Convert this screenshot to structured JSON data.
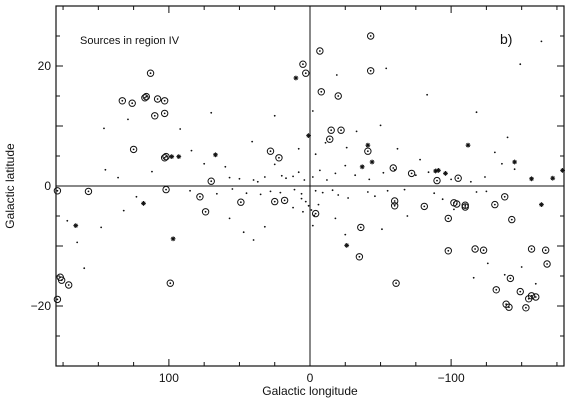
{
  "chart_data": {
    "type": "scatter",
    "title": "",
    "annotation": "Sources in region IV",
    "panel_label": "b)",
    "xlabel": "Galactic longitude",
    "ylabel": "Galactic latitude",
    "xlim": [
      180,
      -180
    ],
    "ylim": [
      -30,
      30
    ],
    "xticks": [
      100,
      0,
      -100
    ],
    "xtick_labels": [
      "100",
      "0",
      "−100"
    ],
    "yticks": [
      20,
      0,
      -20
    ],
    "ytick_labels": [
      "20",
      "0",
      "−20"
    ],
    "grid": false,
    "zero_lines": true,
    "colors": {
      "ink": "#111111",
      "background": "#ffffff"
    },
    "series": [
      {
        "marker": "circled-dot",
        "points": [
          [
            3,
            18.8
          ],
          [
            5,
            20.3
          ],
          [
            -7,
            22.5
          ],
          [
            -43,
            25
          ],
          [
            -43,
            19.2
          ],
          [
            -8,
            15.7
          ],
          [
            -20,
            15
          ],
          [
            -15,
            9.3
          ],
          [
            -22,
            9.3
          ],
          [
            -14,
            7.8
          ],
          [
            -41,
            5.8
          ],
          [
            28,
            5.8
          ],
          [
            22,
            4.7
          ],
          [
            -59,
            3
          ],
          [
            -72,
            2.1
          ],
          [
            -90,
            0.9
          ],
          [
            -105,
            1.3
          ],
          [
            113,
            18.8
          ],
          [
            116,
            14.9
          ],
          [
            117,
            14.7
          ],
          [
            108,
            14.5
          ],
          [
            103,
            14.2
          ],
          [
            126,
            13.8
          ],
          [
            133,
            14.2
          ],
          [
            110,
            11.7
          ],
          [
            103,
            12.1
          ],
          [
            125,
            6.1
          ],
          [
            103,
            4.7
          ],
          [
            102,
            4.9
          ],
          [
            70,
            0.8
          ],
          [
            78,
            -1.8
          ],
          [
            74,
            -4.3
          ],
          [
            99,
            -16.2
          ],
          [
            176,
            -15.7
          ],
          [
            177,
            -15.2
          ],
          [
            171,
            -16.5
          ],
          [
            179,
            -0.8
          ],
          [
            157,
            -0.9
          ],
          [
            102,
            -0.6
          ],
          [
            49,
            -2.7
          ],
          [
            25,
            -2.6
          ],
          [
            18,
            -2.4
          ],
          [
            -4,
            -4.6
          ],
          [
            -36,
            -6.9
          ],
          [
            -35,
            -11.8
          ],
          [
            -60,
            -3.3
          ],
          [
            -60,
            -2.5
          ],
          [
            -81,
            -3.4
          ],
          [
            -98,
            -5.4
          ],
          [
            -104,
            -3
          ],
          [
            -102,
            -2.8
          ],
          [
            -110,
            -3.5
          ],
          [
            -110,
            -3.2
          ],
          [
            -98,
            -10.8
          ],
          [
            -123,
            -10.7
          ],
          [
            -138,
            -1.8
          ],
          [
            -131,
            -3.1
          ],
          [
            -143,
            -5.6
          ],
          [
            -157,
            -10.5
          ],
          [
            -167,
            -10.7
          ],
          [
            -168,
            -13
          ],
          [
            -117,
            -10.5
          ],
          [
            -132,
            -17.3
          ],
          [
            -142,
            -15.4
          ],
          [
            -139,
            -19.7
          ],
          [
            -141,
            -20.2
          ],
          [
            -155,
            -18.8
          ],
          [
            -157,
            -18.3
          ],
          [
            -153,
            -20.3
          ],
          [
            -149,
            -17.6
          ],
          [
            -160,
            -18.5
          ],
          [
            179,
            -18.9
          ],
          [
            -61,
            -16.2
          ]
        ]
      },
      {
        "marker": "star",
        "points": [
          [
            10,
            18
          ],
          [
            1,
            8.4
          ],
          [
            67,
            5.2
          ],
          [
            93,
            4.9
          ],
          [
            98,
            4.9
          ],
          [
            -44,
            4
          ],
          [
            -89,
            2.5
          ],
          [
            -91,
            2.6
          ],
          [
            -112,
            6.8
          ],
          [
            -179,
            2.6
          ],
          [
            -157,
            1.2
          ],
          [
            -164,
            -3.1
          ],
          [
            -26,
            -9.9
          ],
          [
            -41,
            6.8
          ],
          [
            -37,
            3.2
          ],
          [
            -96,
            2.1
          ],
          [
            118,
            -2.9
          ],
          [
            97,
            -8.8
          ],
          [
            166,
            -6.6
          ],
          [
            -145,
            4
          ],
          [
            -172,
            1.3
          ]
        ]
      },
      {
        "marker": "dot",
        "points": [
          [
            75,
            3.7
          ],
          [
            60,
            3.2
          ],
          [
            57,
            1.4
          ],
          [
            50,
            1.2
          ],
          [
            40,
            1
          ],
          [
            37,
            0.7
          ],
          [
            32,
            1.5
          ],
          [
            25,
            3.6
          ],
          [
            20,
            1.7
          ],
          [
            17,
            1.3
          ],
          [
            12,
            1.6
          ],
          [
            8,
            2.3
          ],
          [
            4,
            1
          ],
          [
            -2,
            1.5
          ],
          [
            -7,
            2.6
          ],
          [
            -12,
            1
          ],
          [
            -18,
            2.1
          ],
          [
            -25,
            3.4
          ],
          [
            -32,
            1.8
          ],
          [
            -42,
            1.1
          ],
          [
            -52,
            2.2
          ],
          [
            -60,
            2.7
          ],
          [
            -75,
            1.8
          ],
          [
            -84,
            2.3
          ],
          [
            -100,
            1.1
          ],
          [
            -114,
            0.7
          ],
          [
            -124,
            1.5
          ],
          [
            -136,
            3.7
          ],
          [
            -145,
            2.8
          ],
          [
            85,
            -0.8
          ],
          [
            66,
            -1.3
          ],
          [
            55,
            -0.5
          ],
          [
            45,
            -1.2
          ],
          [
            35,
            -1.4
          ],
          [
            28,
            -0.9
          ],
          [
            21,
            -1.1
          ],
          [
            11,
            -0.6
          ],
          [
            6,
            -1.3
          ],
          [
            -4,
            -0.8
          ],
          [
            -9,
            -1.1
          ],
          [
            -16,
            -0.7
          ],
          [
            -20,
            -1.5
          ],
          [
            -27,
            -2
          ],
          [
            -41,
            -1
          ],
          [
            -46,
            -1.7
          ],
          [
            -55,
            -0.8
          ],
          [
            -67,
            -0.6
          ],
          [
            -88,
            -1.2
          ],
          [
            -94,
            -2.2
          ],
          [
            -118,
            -1
          ],
          [
            -125,
            -0.9
          ],
          [
            6,
            -2.1
          ],
          [
            3,
            -2.6
          ],
          [
            1,
            -3.3
          ],
          [
            -1,
            -4
          ],
          [
            -3,
            -4.9
          ],
          [
            5,
            -4.3
          ],
          [
            12,
            -3.6
          ],
          [
            -2,
            -6.6
          ],
          [
            -6,
            -3.1
          ],
          [
            47,
            -7.7
          ],
          [
            40,
            -9
          ],
          [
            57,
            -5.4
          ],
          [
            32,
            -6.8
          ],
          [
            -18,
            -5.4
          ],
          [
            -25,
            -8.1
          ],
          [
            -51,
            -7.2
          ],
          [
            -69,
            -5
          ],
          [
            -102,
            -3.9
          ],
          [
            -116,
            -15.3
          ],
          [
            -126,
            -12.9
          ],
          [
            -138,
            -14.8
          ],
          [
            -150,
            -13.5
          ],
          [
            -160,
            -16.3
          ],
          [
            172,
            -5.8
          ],
          [
            165,
            -9.4
          ],
          [
            160,
            -13.7
          ],
          [
            148,
            -6.9
          ],
          [
            132,
            -4.1
          ],
          [
            123,
            -1.8
          ],
          [
            136,
            1.4
          ],
          [
            145,
            2.7
          ],
          [
            112,
            2.4
          ],
          [
            84,
            5.9
          ],
          [
            41,
            7.4
          ],
          [
            25,
            11.7
          ],
          [
            8,
            6.2
          ],
          [
            -4,
            5.3
          ],
          [
            -11,
            7.2
          ],
          [
            -26,
            6.4
          ],
          [
            -33,
            9.1
          ],
          [
            -50,
            10.1
          ],
          [
            -62,
            6.2
          ],
          [
            -78,
            4.4
          ],
          [
            -131,
            5.6
          ],
          [
            -140,
            8.1
          ],
          [
            146,
            9.6
          ],
          [
            129,
            11.1
          ],
          [
            92,
            9.5
          ],
          [
            70,
            12.2
          ],
          [
            -2,
            12.5
          ],
          [
            -19,
            18.5
          ],
          [
            -54,
            19.6
          ],
          [
            -83,
            15.2
          ],
          [
            -118,
            12.3
          ],
          [
            -149,
            20.3
          ],
          [
            -164,
            24.1
          ]
        ]
      }
    ]
  }
}
